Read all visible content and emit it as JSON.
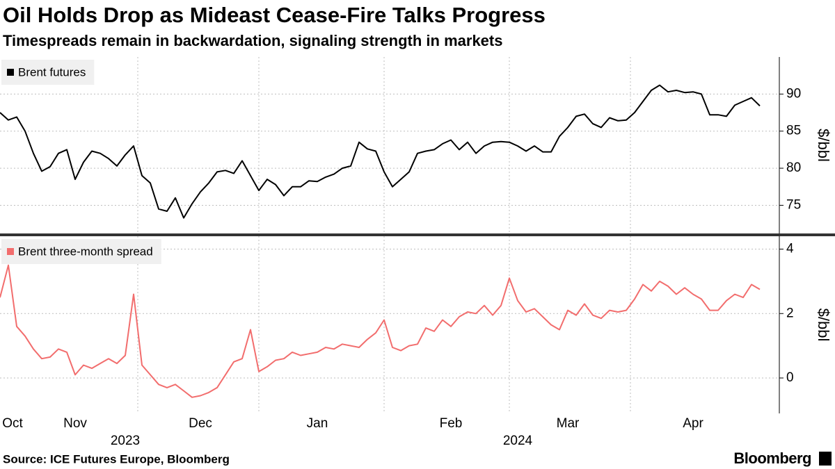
{
  "header": {
    "title": "Oil Holds Drop as Mideast Cease-Fire Talks Progress",
    "subtitle": "Timespreads remain in backwardation, signaling strength in markets"
  },
  "footer": {
    "source": "Source: ICE Futures Europe, Bloomberg",
    "brand": "Bloomberg"
  },
  "chart_data": [
    {
      "type": "line",
      "y_label": "$/bbl",
      "ylim": [
        71.2,
        95
      ],
      "yticks": [
        75,
        80,
        85,
        90
      ],
      "grid": true,
      "series": [
        {
          "name": "Brent futures",
          "color": "#000000",
          "values": [
            87.5,
            86.5,
            86.9,
            85.0,
            82.0,
            79.6,
            80.2,
            82.0,
            82.5,
            78.5,
            80.8,
            82.3,
            82.0,
            81.3,
            80.3,
            81.8,
            83.0,
            79.0,
            78.0,
            74.5,
            74.2,
            76.0,
            73.3,
            75.2,
            76.8,
            78.0,
            79.5,
            79.7,
            79.3,
            81.0,
            79.0,
            77.0,
            78.5,
            77.8,
            76.3,
            77.5,
            77.5,
            78.3,
            78.2,
            78.8,
            79.2,
            80.0,
            80.3,
            83.5,
            82.6,
            82.3,
            79.5,
            77.5,
            78.5,
            79.5,
            82.0,
            82.3,
            82.5,
            83.3,
            83.8,
            82.5,
            83.5,
            82.0,
            83.0,
            83.5,
            83.6,
            83.5,
            83.0,
            82.3,
            83.0,
            82.2,
            82.2,
            84.3,
            85.5,
            87.0,
            87.3,
            86.0,
            85.5,
            86.8,
            86.4,
            86.5,
            87.5,
            89.0,
            90.5,
            91.2,
            90.3,
            90.5,
            90.2,
            90.3,
            90.0,
            87.2,
            87.2,
            87.0,
            88.5,
            89.0,
            89.5,
            88.4
          ]
        }
      ]
    },
    {
      "type": "line",
      "y_label": "$/bbl",
      "ylim": [
        -1.1,
        4.4
      ],
      "yticks": [
        0,
        2,
        4
      ],
      "grid": true,
      "categories": [
        null,
        "Oct",
        null,
        null,
        null,
        null,
        null,
        null,
        null,
        "Nov",
        null,
        null,
        null,
        null,
        null,
        null,
        null,
        null,
        null,
        null,
        null,
        null,
        null,
        null,
        "Dec",
        null,
        null,
        null,
        null,
        null,
        null,
        null,
        null,
        null,
        null,
        null,
        null,
        null,
        "Jan",
        null,
        null,
        null,
        null,
        null,
        null,
        null,
        null,
        null,
        null,
        null,
        null,
        null,
        null,
        null,
        "Feb",
        null,
        null,
        null,
        null,
        null,
        null,
        null,
        null,
        null,
        null,
        null,
        null,
        null,
        "Mar",
        null,
        null,
        null,
        null,
        null,
        null,
        null,
        null,
        null,
        null,
        null,
        null,
        null,
        null,
        "Apr",
        null,
        null,
        null,
        null,
        null,
        null,
        null,
        null
      ],
      "years": [
        null,
        null,
        null,
        null,
        null,
        null,
        null,
        null,
        null,
        null,
        null,
        null,
        null,
        null,
        null,
        "2023",
        null,
        null,
        null,
        null,
        null,
        null,
        null,
        null,
        null,
        null,
        null,
        null,
        null,
        null,
        null,
        null,
        null,
        null,
        null,
        null,
        null,
        null,
        null,
        null,
        null,
        null,
        null,
        null,
        null,
        null,
        null,
        null,
        null,
        null,
        null,
        null,
        null,
        null,
        null,
        null,
        null,
        null,
        null,
        null,
        null,
        null,
        "2024",
        null,
        null,
        null,
        null,
        null,
        null,
        null,
        null,
        null,
        null,
        null,
        null,
        null,
        null,
        null,
        null,
        null,
        null,
        null,
        null,
        null,
        null,
        null,
        null,
        null,
        null,
        null,
        null,
        null
      ],
      "series": [
        {
          "name": "Brent three-month spread",
          "color": "#f26d6d",
          "values": [
            2.5,
            3.5,
            1.6,
            1.3,
            0.9,
            0.6,
            0.65,
            0.9,
            0.8,
            0.1,
            0.4,
            0.3,
            0.45,
            0.6,
            0.45,
            0.7,
            2.6,
            0.4,
            0.1,
            -0.2,
            -0.3,
            -0.2,
            -0.4,
            -0.6,
            -0.55,
            -0.45,
            -0.3,
            0.1,
            0.5,
            0.6,
            1.5,
            0.2,
            0.35,
            0.55,
            0.6,
            0.8,
            0.7,
            0.75,
            0.8,
            0.95,
            0.9,
            1.05,
            1.0,
            0.95,
            1.2,
            1.4,
            1.8,
            0.95,
            0.85,
            1.0,
            1.05,
            1.55,
            1.45,
            1.8,
            1.6,
            1.9,
            2.05,
            2.0,
            2.25,
            1.95,
            2.25,
            3.1,
            2.4,
            2.05,
            2.15,
            1.9,
            1.65,
            1.5,
            2.1,
            1.95,
            2.3,
            1.95,
            1.85,
            2.1,
            2.05,
            2.1,
            2.45,
            2.9,
            2.7,
            3.0,
            2.85,
            2.6,
            2.8,
            2.6,
            2.45,
            2.1,
            2.1,
            2.4,
            2.6,
            2.5,
            2.9,
            2.75
          ]
        }
      ]
    }
  ]
}
